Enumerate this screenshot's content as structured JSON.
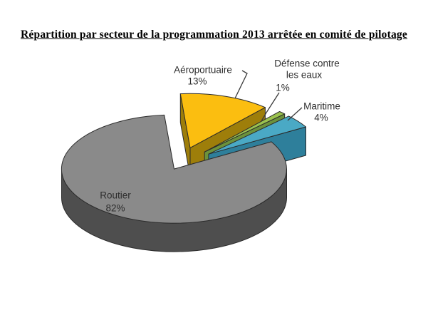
{
  "chart_data": {
    "type": "pie",
    "style": "3d-exploded-pie",
    "title": "Répartition par secteur de la programmation 2013 arrêtée en comité de pilotage",
    "unit": "%",
    "legend_position": "none",
    "background": "#FFFFFF",
    "clockwise": true,
    "start_at_top": true,
    "slices": [
      {
        "label": "Aéroportuaire",
        "value": 13,
        "display_lines": [
          "Aéroportuaire",
          "13%"
        ],
        "color": "#FBBE10",
        "side_color": "#9E7E0A",
        "exploded": true,
        "label_placement": "outside-callout"
      },
      {
        "label": "Défense contre les eaux",
        "value": 1,
        "display_lines": [
          "Défense contre",
          "les eaux",
          "1%"
        ],
        "color": "#9BC24E",
        "side_color": "#6C923B",
        "exploded": true,
        "label_placement": "outside-callout"
      },
      {
        "label": "Maritime",
        "value": 4,
        "display_lines": [
          "Maritime",
          "4%"
        ],
        "color": "#4AA9C5",
        "side_color": "#2E7F9B",
        "exploded": true,
        "label_placement": "outside-callout"
      },
      {
        "label": "Routier",
        "value": 82,
        "display_lines": [
          "Routier",
          "82%"
        ],
        "color": "#8A8A8A",
        "side_color": "#4E4E4E",
        "exploded": false,
        "label_placement": "inside"
      }
    ]
  }
}
